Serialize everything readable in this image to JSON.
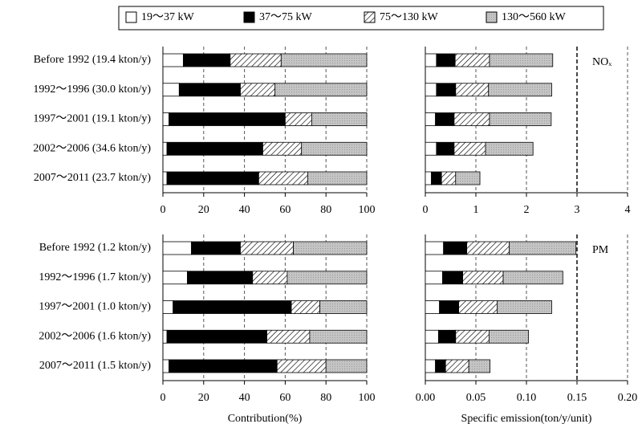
{
  "legend": {
    "names": [
      "19～37 kW",
      "37～75 kW",
      "75～130 kW",
      "130～560 kW"
    ],
    "colors": [
      "#ffffff",
      "#000000",
      "hatch",
      "#c4c4c4"
    ]
  },
  "chart_data": [
    {
      "type": "bar",
      "orientation": "horizontal",
      "stacked": true,
      "grid": true,
      "categories": [
        "Before 1992 (19.4 kton/y)",
        "1992～1996 (30.0 kton/y)",
        "1997～2001 (19.1 kton/y)",
        "2002～2006 (34.6 kton/y)",
        "2007～2011 (23.7 kton/y)"
      ],
      "series": [
        {
          "values": [
            10,
            8,
            3,
            2,
            2
          ]
        },
        {
          "values": [
            23,
            30,
            57,
            47,
            45
          ]
        },
        {
          "values": [
            25,
            17,
            13,
            19,
            24
          ]
        },
        {
          "values": [
            42,
            45,
            27,
            32,
            29
          ]
        }
      ],
      "xlim": [
        0,
        100
      ],
      "xticks": [
        0,
        20,
        40,
        60,
        80,
        100
      ]
    },
    {
      "type": "bar",
      "orientation": "horizontal",
      "stacked": true,
      "grid": true,
      "annotation": "NOₓ",
      "series": [
        {
          "values": [
            0.22,
            0.22,
            0.2,
            0.22,
            0.12
          ]
        },
        {
          "values": [
            0.37,
            0.38,
            0.37,
            0.35,
            0.2
          ]
        },
        {
          "values": [
            0.68,
            0.65,
            0.7,
            0.62,
            0.28
          ]
        },
        {
          "values": [
            1.25,
            1.25,
            1.22,
            0.94,
            0.48
          ]
        }
      ],
      "xlim": [
        0,
        4
      ],
      "xticks": [
        0,
        1,
        2,
        3,
        4
      ]
    },
    {
      "type": "bar",
      "orientation": "horizontal",
      "stacked": true,
      "grid": true,
      "xlabel": "Contribution(%)",
      "categories": [
        "Before 1992 (1.2 kton/y)",
        "1992～1996 (1.7 kton/y)",
        "1997～2001 (1.0 kton/y)",
        "2002～2006 (1.6 kton/y)",
        "2007～2011 (1.5 kton/y)"
      ],
      "series": [
        {
          "values": [
            14,
            12,
            5,
            2,
            3
          ]
        },
        {
          "values": [
            24,
            32,
            58,
            49,
            53
          ]
        },
        {
          "values": [
            26,
            17,
            14,
            21,
            24
          ]
        },
        {
          "values": [
            36,
            39,
            23,
            28,
            20
          ]
        }
      ],
      "xlim": [
        0,
        100
      ],
      "xticks": [
        0,
        20,
        40,
        60,
        80,
        100
      ]
    },
    {
      "type": "bar",
      "orientation": "horizontal",
      "stacked": true,
      "grid": true,
      "annotation": "PM",
      "xlabel": "Specific emission(ton/y/unit)",
      "series": [
        {
          "values": [
            0.018,
            0.017,
            0.014,
            0.013,
            0.01
          ]
        },
        {
          "values": [
            0.023,
            0.02,
            0.019,
            0.017,
            0.01
          ]
        },
        {
          "values": [
            0.042,
            0.04,
            0.038,
            0.033,
            0.023
          ]
        },
        {
          "values": [
            0.066,
            0.059,
            0.054,
            0.039,
            0.021
          ]
        }
      ],
      "xlim": [
        0,
        0.2
      ],
      "xticks": [
        {
          "value": 0,
          "label": "0.00"
        },
        0.05,
        {
          "value": 0.1,
          "label": "0.10"
        },
        0.15,
        {
          "value": 0.2,
          "label": "0.20"
        }
      ]
    }
  ]
}
